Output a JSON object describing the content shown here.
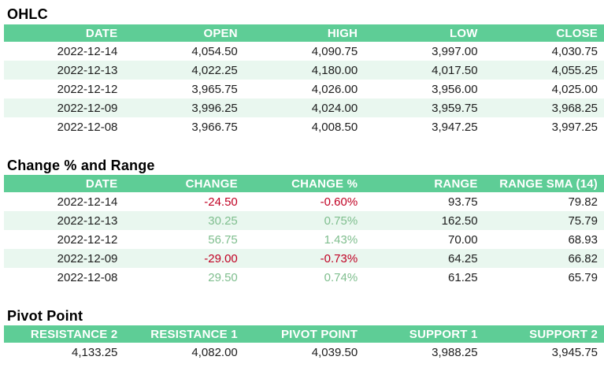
{
  "colors": {
    "header_bg": "#5ECD96",
    "header_text": "#FFFFFF",
    "row_bg": "#FFFFFF",
    "row_alt_bg": "#E9F7EF",
    "positive_text": "#7FBE8E",
    "negative_text": "#C00023",
    "body_text": "#1D1D1D",
    "title_text": "#000000"
  },
  "chart_data": [
    {
      "type": "table",
      "title": "OHLC",
      "columns": [
        "DATE",
        "OPEN",
        "HIGH",
        "LOW",
        "CLOSE"
      ],
      "rows": [
        [
          "2022-12-14",
          "4,054.50",
          "4,090.75",
          "3,997.00",
          "4,030.75"
        ],
        [
          "2022-12-13",
          "4,022.25",
          "4,180.00",
          "4,017.50",
          "4,055.25"
        ],
        [
          "2022-12-12",
          "3,965.75",
          "4,026.00",
          "3,956.00",
          "4,025.00"
        ],
        [
          "2022-12-09",
          "3,996.25",
          "4,024.00",
          "3,959.75",
          "3,968.25"
        ],
        [
          "2022-12-08",
          "3,966.75",
          "4,008.50",
          "3,947.25",
          "3,997.25"
        ]
      ]
    },
    {
      "type": "table",
      "title": "Change % and Range",
      "columns": [
        "DATE",
        "CHANGE",
        "CHANGE %",
        "RANGE",
        "RANGE SMA (14)"
      ],
      "signed_columns": [
        1,
        2
      ],
      "rows": [
        [
          "2022-12-14",
          "-24.50",
          "-0.60%",
          "93.75",
          "79.82"
        ],
        [
          "2022-12-13",
          "30.25",
          "0.75%",
          "162.50",
          "75.79"
        ],
        [
          "2022-12-12",
          "56.75",
          "1.43%",
          "70.00",
          "68.93"
        ],
        [
          "2022-12-09",
          "-29.00",
          "-0.73%",
          "64.25",
          "66.82"
        ],
        [
          "2022-12-08",
          "29.50",
          "0.74%",
          "61.25",
          "65.79"
        ]
      ]
    },
    {
      "type": "table",
      "title": "Pivot Point",
      "columns": [
        "RESISTANCE 2",
        "RESISTANCE 1",
        "PIVOT POINT",
        "SUPPORT 1",
        "SUPPORT 2"
      ],
      "rows": [
        [
          "4,133.25",
          "4,082.00",
          "4,039.50",
          "3,988.25",
          "3,945.75"
        ]
      ]
    }
  ]
}
